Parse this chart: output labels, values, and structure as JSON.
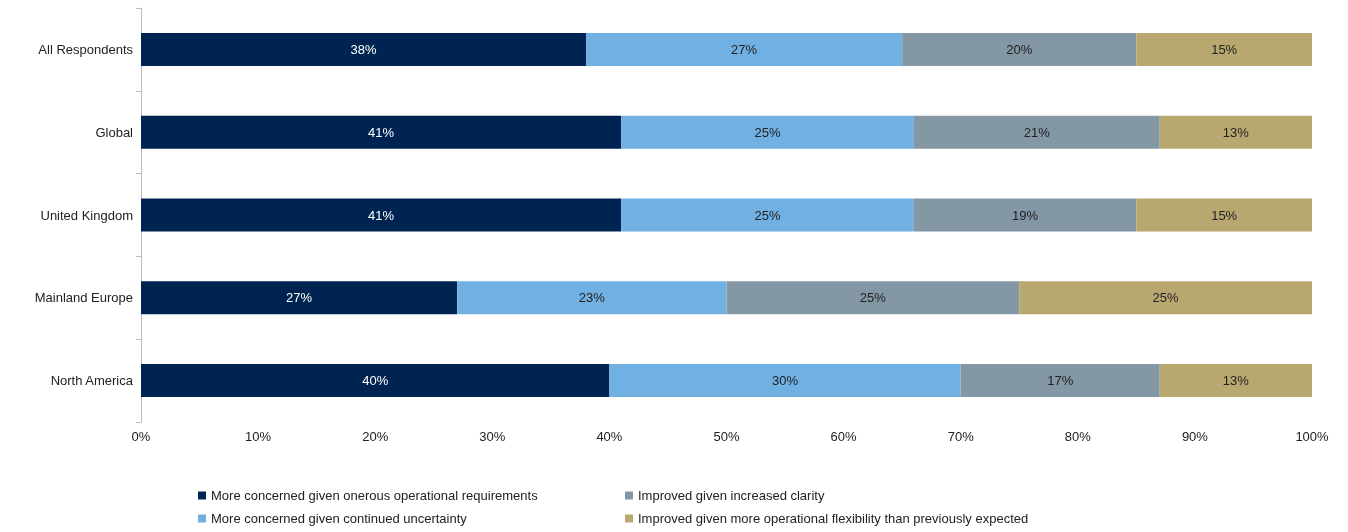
{
  "chart_data": {
    "type": "bar",
    "orientation": "horizontal",
    "stacked": true,
    "categories": [
      "All Respondents",
      "Global",
      "United Kingdom",
      "Mainland Europe",
      "North America"
    ],
    "series": [
      {
        "name": "More concerned given onerous operational requirements",
        "color": "#002451",
        "values": [
          38,
          41,
          41,
          27,
          40
        ],
        "value_labels": [
          "38%",
          "41%",
          "41%",
          "27%",
          "40%"
        ]
      },
      {
        "name": "More concerned given continued uncertainty",
        "color": "#71b0e3",
        "values": [
          27,
          25,
          25,
          23,
          30
        ],
        "value_labels": [
          "27%",
          "25%",
          "25%",
          "23%",
          "30%"
        ]
      },
      {
        "name": "Improved given increased clarity",
        "color": "#8497a5",
        "values": [
          20,
          21,
          19,
          25,
          17
        ],
        "value_labels": [
          "20%",
          "21%",
          "19%",
          "25%",
          "17%"
        ]
      },
      {
        "name": "Improved given more operational flexibility than previously expected",
        "color": "#b8a870",
        "values": [
          15,
          13,
          15,
          25,
          13
        ],
        "value_labels": [
          "15%",
          "13%",
          "15%",
          "25%",
          "13%"
        ]
      }
    ],
    "xlim": [
      0,
      100
    ],
    "xticks": [
      {
        "value": 0,
        "label": "0%"
      },
      {
        "value": 10,
        "label": "10%"
      },
      {
        "value": 20,
        "label": "20%"
      },
      {
        "value": 30,
        "label": "30%"
      },
      {
        "value": 40,
        "label": "40%"
      },
      {
        "value": 50,
        "label": "50%"
      },
      {
        "value": 60,
        "label": "60%"
      },
      {
        "value": 70,
        "label": "70%"
      },
      {
        "value": 80,
        "label": "80%"
      },
      {
        "value": 90,
        "label": "90%"
      },
      {
        "value": 100,
        "label": "100%"
      }
    ],
    "grid": false,
    "legend": "bottom"
  }
}
